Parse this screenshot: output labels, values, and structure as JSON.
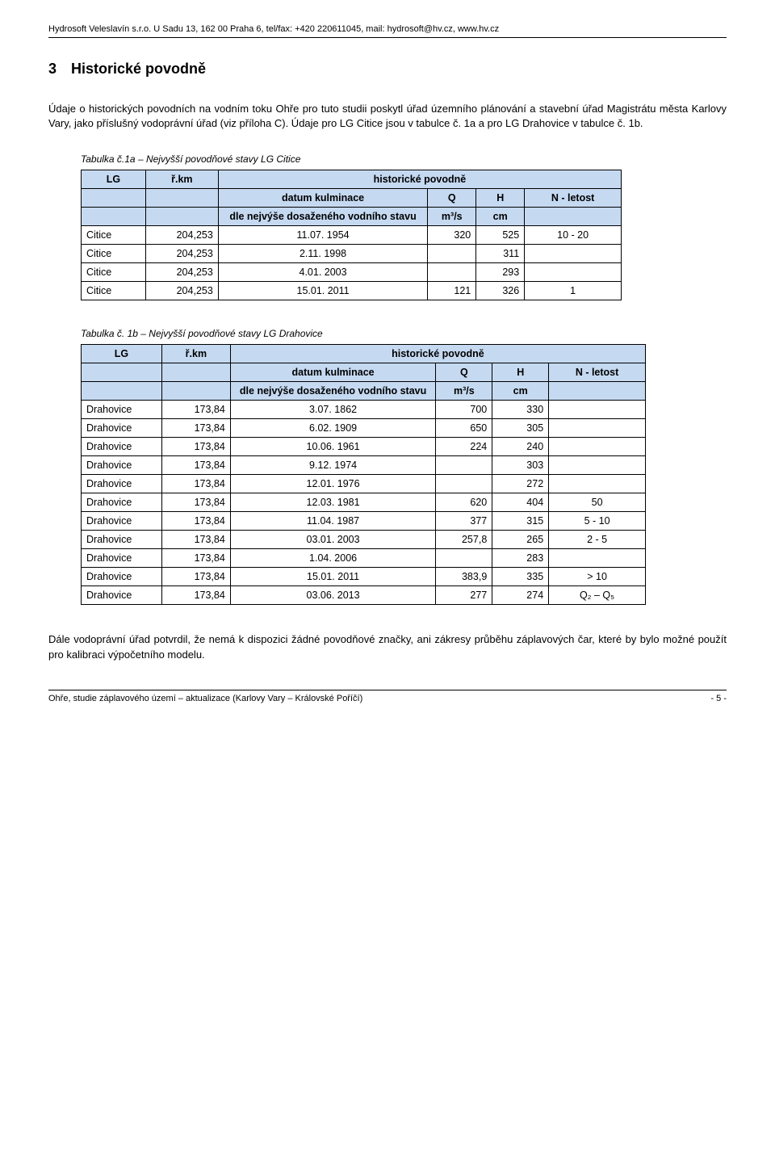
{
  "header": "Hydrosoft Veleslavín s.r.o. U Sadu 13, 162 00 Praha 6, tel/fax: +420 220611045, mail: hydrosoft@hv.cz, www.hv.cz",
  "section": {
    "num": "3",
    "title": "Historické povodně"
  },
  "para1": "Údaje o historických povodních na vodním toku Ohře pro tuto studii poskytl úřad územního plánování a stavební úřad Magistrátu města Karlovy Vary, jako příslušný vodoprávní úřad (viz příloha C). Údaje pro LG Citice jsou v tabulce č. 1a a pro LG Drahovice v tabulce č. 1b.",
  "table1": {
    "caption": "Tabulka č.1a – Nejvyšší povodňové stavy LG Citice",
    "h_lg": "LG",
    "h_rkm": "ř.km",
    "h_hist": "historické povodně",
    "h_datum": "datum kulminace",
    "h_q": "Q",
    "h_h": "H",
    "h_n": "N - letost",
    "h_stavu": "dle nejvýše dosaženého vodního stavu",
    "h_m3s": "m³/s",
    "h_cm": "cm",
    "rows": [
      {
        "lg": "Citice",
        "rkm": "204,253",
        "datum": "11.07. 1954",
        "q": "320",
        "h": "525",
        "n": "10 - 20"
      },
      {
        "lg": "Citice",
        "rkm": "204,253",
        "datum": "2.11. 1998",
        "q": "",
        "h": "311",
        "n": ""
      },
      {
        "lg": "Citice",
        "rkm": "204,253",
        "datum": "4.01. 2003",
        "q": "",
        "h": "293",
        "n": ""
      },
      {
        "lg": "Citice",
        "rkm": "204,253",
        "datum": "15.01. 2011",
        "q": "121",
        "h": "326",
        "n": "1"
      }
    ]
  },
  "table2": {
    "caption": "Tabulka č. 1b – Nejvyšší povodňové stavy LG Drahovice",
    "h_lg": "LG",
    "h_rkm": "ř.km",
    "h_hist": "historické povodně",
    "h_datum": "datum kulminace",
    "h_q": "Q",
    "h_h": "H",
    "h_n": "N - letost",
    "h_stavu": "dle nejvýše dosaženého vodního stavu",
    "h_m3s": "m³/s",
    "h_cm": "cm",
    "rows": [
      {
        "lg": "Drahovice",
        "rkm": "173,84",
        "datum": "3.07. 1862",
        "q": "700",
        "h": "330",
        "n": ""
      },
      {
        "lg": "Drahovice",
        "rkm": "173,84",
        "datum": "6.02. 1909",
        "q": "650",
        "h": "305",
        "n": ""
      },
      {
        "lg": "Drahovice",
        "rkm": "173,84",
        "datum": "10.06. 1961",
        "q": "224",
        "h": "240",
        "n": ""
      },
      {
        "lg": "Drahovice",
        "rkm": "173,84",
        "datum": "9.12. 1974",
        "q": "",
        "h": "303",
        "n": ""
      },
      {
        "lg": "Drahovice",
        "rkm": "173,84",
        "datum": "12.01. 1976",
        "q": "",
        "h": "272",
        "n": ""
      },
      {
        "lg": "Drahovice",
        "rkm": "173,84",
        "datum": "12.03. 1981",
        "q": "620",
        "h": "404",
        "n": "50"
      },
      {
        "lg": "Drahovice",
        "rkm": "173,84",
        "datum": "11.04. 1987",
        "q": "377",
        "h": "315",
        "n": "5 - 10"
      },
      {
        "lg": "Drahovice",
        "rkm": "173,84",
        "datum": "03.01. 2003",
        "q": "257,8",
        "h": "265",
        "n": "2 - 5"
      },
      {
        "lg": "Drahovice",
        "rkm": "173,84",
        "datum": "1.04. 2006",
        "q": "",
        "h": "283",
        "n": ""
      },
      {
        "lg": "Drahovice",
        "rkm": "173,84",
        "datum": "15.01. 2011",
        "q": "383,9",
        "h": "335",
        "n": "> 10"
      },
      {
        "lg": "Drahovice",
        "rkm": "173,84",
        "datum": "03.06. 2013",
        "q": "277",
        "h": "274",
        "n": "Q₂ – Q₅"
      }
    ]
  },
  "para2": "Dále vodoprávní úřad potvrdil, že nemá k dispozici žádné povodňové značky, ani zákresy průběhu záplavových čar, které by bylo možné použít pro kalibraci výpočetního modelu.",
  "footer": {
    "left": "Ohře, studie záplavového území – aktualizace (Karlovy Vary – Královské Poříčí)",
    "right": "- 5 -"
  }
}
